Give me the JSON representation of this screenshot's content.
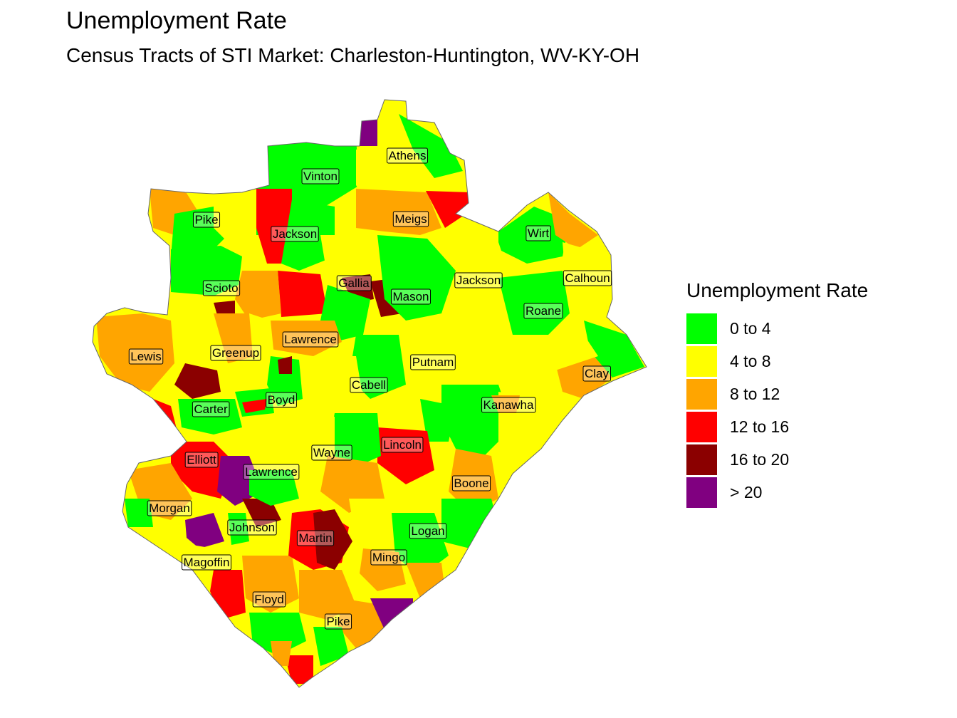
{
  "title": "Unemployment Rate",
  "subtitle": "Census Tracts of STI Market: Charleston-Huntington, WV-KY-OH",
  "legend": {
    "title": "Unemployment Rate",
    "classes": [
      {
        "label": "0 to 4",
        "color": "#00ff00"
      },
      {
        "label": "4 to 8",
        "color": "#ffff00"
      },
      {
        "label": "8 to 12",
        "color": "#ffa500"
      },
      {
        "label": "12 to 16",
        "color": "#ff0000"
      },
      {
        "label": "16 to 20",
        "color": "#8b0000"
      },
      {
        "label": "> 20",
        "color": "#800080"
      }
    ]
  },
  "counties": [
    "Athens",
    "Vinton",
    "Pike",
    "Jackson",
    "Meigs",
    "Wirt",
    "Calhoun",
    "Scioto",
    "Gallia",
    "Mason",
    "Jackson",
    "Roane",
    "Lewis",
    "Greenup",
    "Lawrence",
    "Putnam",
    "Clay",
    "Cabell",
    "Boyd",
    "Carter",
    "Kanawha",
    "Lincoln",
    "Elliott",
    "Wayne",
    "Lawrence",
    "Boone",
    "Morgan",
    "Johnson",
    "Logan",
    "Martin",
    "Mingo",
    "Magoffin",
    "Floyd",
    "Pike"
  ]
}
